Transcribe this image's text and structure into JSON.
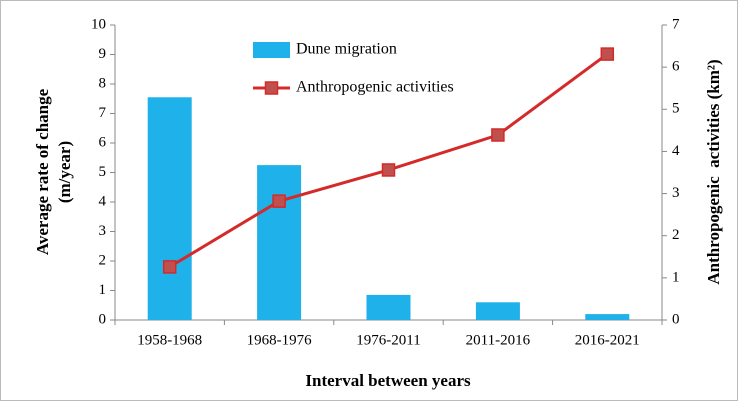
{
  "chart_data": {
    "type": "bar_line",
    "xlabel": "Interval between years",
    "ylabel": [
      "Average rate of change",
      "(m/year)"
    ],
    "y2label": "Anthropogenic  activities (km²)",
    "categories": [
      "1958-1968",
      "1968-1976",
      "1976-2011",
      "2011-2016",
      "2016-2021"
    ],
    "series": [
      {
        "name": "Dune migration",
        "type": "bar",
        "color": "#1fb1ea",
        "values": [
          7.55,
          5.25,
          0.85,
          0.6,
          0.2
        ]
      },
      {
        "name": "Anthropogenic activities",
        "type": "line",
        "axis": "y2",
        "color": "#d42a2a",
        "marker_color": "#c0504d",
        "values": [
          1.26,
          2.82,
          3.56,
          4.39,
          6.31
        ]
      }
    ],
    "ylim": [
      0,
      10
    ],
    "yticks": [
      0,
      1,
      2,
      3,
      4,
      5,
      6,
      7,
      8,
      9,
      10
    ],
    "y2lim": [
      0,
      7
    ],
    "y2ticks": [
      0,
      1,
      2,
      3,
      4,
      5,
      6,
      7
    ],
    "legend": "top"
  }
}
